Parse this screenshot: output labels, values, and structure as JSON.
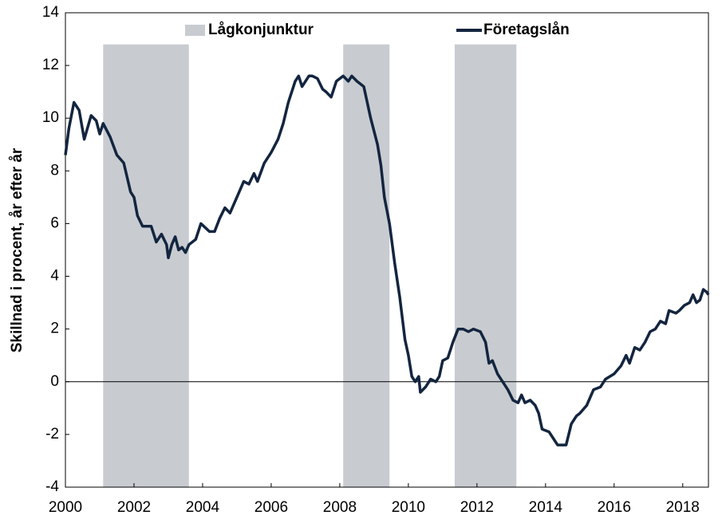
{
  "chart_data": {
    "type": "line",
    "y_label": "Skillnad i procent, år efter år",
    "xlim": [
      2000,
      2018.75
    ],
    "xticks": [
      2000,
      2002,
      2004,
      2006,
      2008,
      2010,
      2012,
      2014,
      2016,
      2018
    ],
    "ylim": [
      -4,
      14
    ],
    "yticks": [
      -4,
      -2,
      0,
      2,
      4,
      6,
      8,
      10,
      12,
      14
    ],
    "bands": {
      "name": "Lågkonjunktur",
      "color": "#c8ccd1",
      "top": 12.8,
      "ranges": [
        [
          2001.1,
          2003.6
        ],
        [
          2008.1,
          2009.45
        ],
        [
          2011.35,
          2013.15
        ]
      ]
    },
    "series": [
      {
        "name": "Företagslån",
        "color": "#13253f",
        "x": [
          2000.0,
          2000.1,
          2000.25,
          2000.4,
          2000.55,
          2000.75,
          2000.9,
          2001.0,
          2001.1,
          2001.3,
          2001.5,
          2001.7,
          2001.9,
          2002.0,
          2002.1,
          2002.25,
          2002.5,
          2002.65,
          2002.8,
          2002.95,
          2003.0,
          2003.1,
          2003.2,
          2003.3,
          2003.4,
          2003.5,
          2003.6,
          2003.8,
          2003.95,
          2004.2,
          2004.35,
          2004.5,
          2004.65,
          2004.8,
          2005.0,
          2005.2,
          2005.35,
          2005.5,
          2005.6,
          2005.8,
          2006.0,
          2006.2,
          2006.35,
          2006.5,
          2006.7,
          2006.8,
          2006.9,
          2007.1,
          2007.2,
          2007.35,
          2007.5,
          2007.6,
          2007.75,
          2007.9,
          2008.1,
          2008.25,
          2008.35,
          2008.5,
          2008.7,
          2008.9,
          2009.1,
          2009.2,
          2009.3,
          2009.45,
          2009.6,
          2009.75,
          2009.9,
          2010.0,
          2010.1,
          2010.2,
          2010.3,
          2010.35,
          2010.5,
          2010.65,
          2010.8,
          2010.9,
          2011.0,
          2011.15,
          2011.3,
          2011.45,
          2011.6,
          2011.75,
          2011.9,
          2012.1,
          2012.25,
          2012.35,
          2012.45,
          2012.6,
          2012.8,
          2012.9,
          2013.05,
          2013.2,
          2013.3,
          2013.4,
          2013.55,
          2013.7,
          2013.8,
          2013.9,
          2014.1,
          2014.25,
          2014.35,
          2014.6,
          2014.75,
          2014.9,
          2015.0,
          2015.2,
          2015.4,
          2015.6,
          2015.75,
          2016.0,
          2016.2,
          2016.35,
          2016.45,
          2016.6,
          2016.75,
          2016.9,
          2017.05,
          2017.2,
          2017.35,
          2017.5,
          2017.6,
          2017.8,
          2017.9,
          2018.05,
          2018.2,
          2018.3,
          2018.4,
          2018.5,
          2018.6,
          2018.7,
          2018.75
        ],
        "values": [
          8.6,
          9.6,
          10.6,
          10.3,
          9.2,
          10.1,
          9.9,
          9.4,
          9.8,
          9.3,
          8.6,
          8.3,
          7.2,
          7.0,
          6.3,
          5.9,
          5.9,
          5.3,
          5.6,
          5.2,
          4.7,
          5.2,
          5.5,
          5.0,
          5.1,
          4.9,
          5.2,
          5.4,
          6.0,
          5.7,
          5.7,
          6.2,
          6.6,
          6.4,
          7.0,
          7.6,
          7.5,
          7.9,
          7.6,
          8.3,
          8.7,
          9.2,
          9.8,
          10.6,
          11.4,
          11.6,
          11.2,
          11.6,
          11.6,
          11.5,
          11.1,
          11.0,
          10.8,
          11.4,
          11.6,
          11.4,
          11.6,
          11.4,
          11.2,
          10.0,
          9.0,
          8.2,
          7.0,
          6.0,
          4.5,
          3.2,
          1.6,
          1.0,
          0.2,
          0.0,
          0.2,
          -0.4,
          -0.2,
          0.1,
          0.0,
          0.2,
          0.8,
          0.9,
          1.5,
          2.0,
          2.0,
          1.9,
          2.0,
          1.9,
          1.5,
          0.7,
          0.8,
          0.3,
          -0.1,
          -0.3,
          -0.7,
          -0.8,
          -0.5,
          -0.8,
          -0.7,
          -0.9,
          -1.2,
          -1.8,
          -1.9,
          -2.2,
          -2.4,
          -2.4,
          -1.6,
          -1.3,
          -1.2,
          -0.9,
          -0.3,
          -0.2,
          0.1,
          0.3,
          0.6,
          1.0,
          0.7,
          1.3,
          1.2,
          1.5,
          1.9,
          2.0,
          2.3,
          2.2,
          2.7,
          2.6,
          2.7,
          2.9,
          3.0,
          3.3,
          3.0,
          3.1,
          3.5,
          3.4,
          3.3
        ]
      }
    ]
  }
}
